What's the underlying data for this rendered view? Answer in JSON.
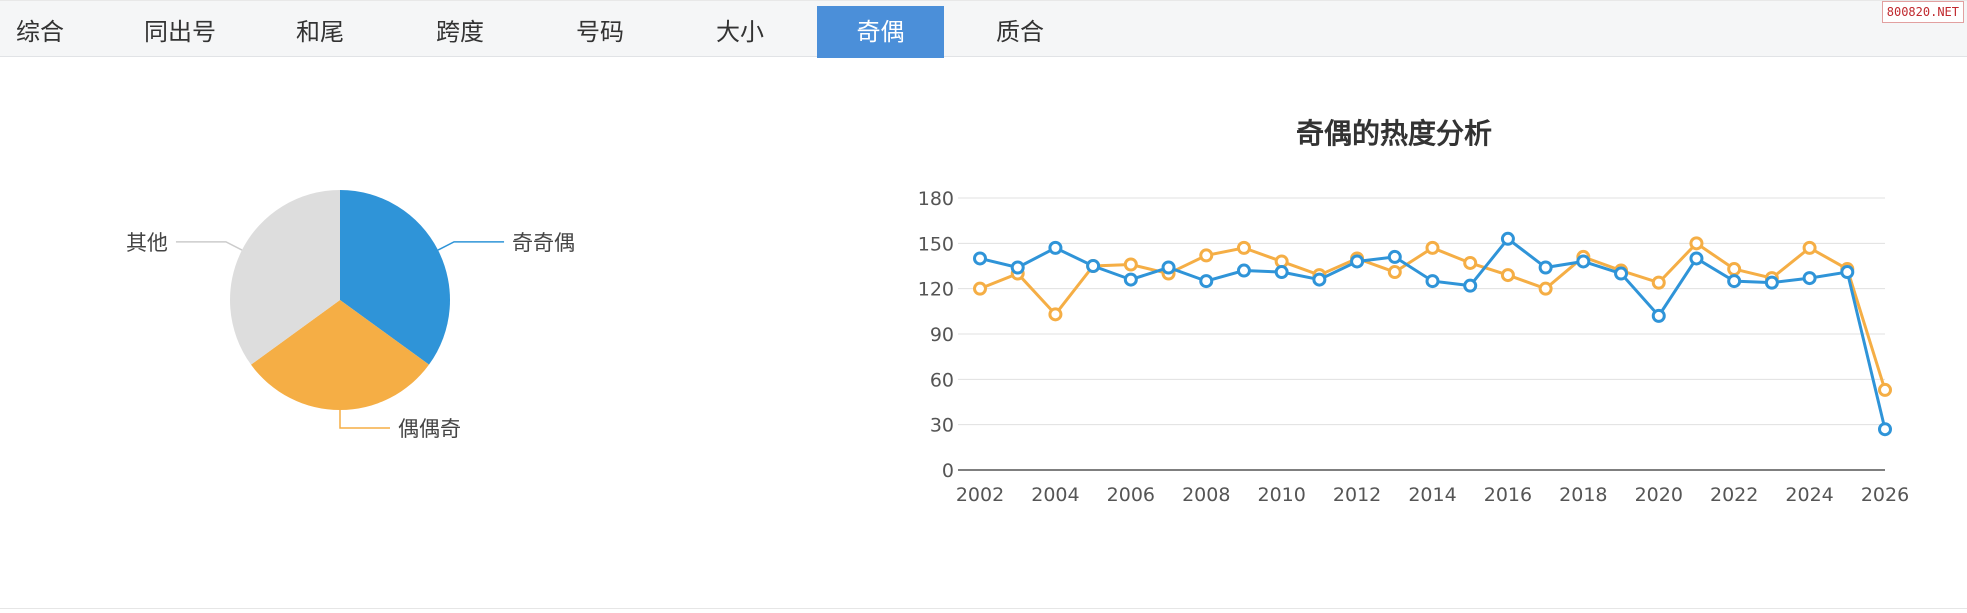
{
  "tabs": [
    {
      "label": "综合",
      "active": false
    },
    {
      "label": "同出号",
      "active": false
    },
    {
      "label": "和尾",
      "active": false
    },
    {
      "label": "跨度",
      "active": false
    },
    {
      "label": "号码",
      "active": false
    },
    {
      "label": "大小",
      "active": false
    },
    {
      "label": "奇偶",
      "active": true
    },
    {
      "label": "质合",
      "active": false
    }
  ],
  "watermark": "800820.NET",
  "colors": {
    "blue": "#2f94d8",
    "orange": "#f5ae45",
    "gray": "#dddddd",
    "tab_active": "#4b8fd9"
  },
  "chart_data": [
    {
      "type": "pie",
      "title": "",
      "slices": [
        {
          "name": "奇奇偶",
          "value": 35,
          "color": "#2f94d8"
        },
        {
          "name": "偶偶奇",
          "value": 30,
          "color": "#f5ae45"
        },
        {
          "name": "其他",
          "value": 35,
          "color": "#dddddd"
        }
      ]
    },
    {
      "type": "line",
      "title": "奇偶的热度分析",
      "x": [
        2002,
        2003,
        2004,
        2005,
        2006,
        2007,
        2008,
        2009,
        2010,
        2011,
        2012,
        2013,
        2014,
        2015,
        2016,
        2017,
        2018,
        2019,
        2020,
        2021,
        2022,
        2023,
        2024,
        2025,
        2026
      ],
      "x_ticks": [
        2002,
        2004,
        2006,
        2008,
        2010,
        2012,
        2014,
        2016,
        2018,
        2020,
        2022,
        2024,
        2026
      ],
      "ylim": [
        0,
        180
      ],
      "y_ticks": [
        0,
        30,
        60,
        90,
        120,
        150,
        180
      ],
      "grid": true,
      "series": [
        {
          "color": "#2f94d8",
          "values": [
            140,
            134,
            147,
            135,
            126,
            134,
            125,
            132,
            131,
            126,
            138,
            141,
            125,
            122,
            153,
            134,
            138,
            130,
            102,
            140,
            125,
            124,
            127,
            131,
            27
          ]
        },
        {
          "color": "#f5ae45",
          "values": [
            120,
            130,
            103,
            135,
            136,
            130,
            142,
            147,
            138,
            129,
            140,
            131,
            147,
            137,
            129,
            120,
            141,
            132,
            124,
            150,
            133,
            127,
            147,
            133,
            53
          ]
        }
      ]
    }
  ]
}
